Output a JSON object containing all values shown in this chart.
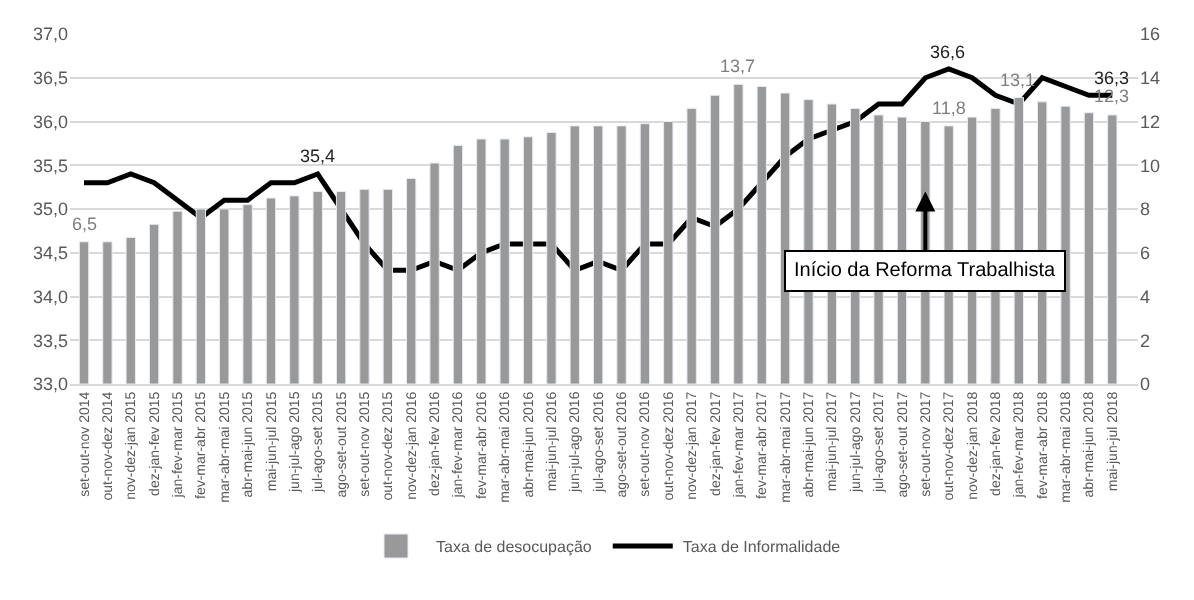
{
  "chart_data": {
    "type": "bar",
    "categories": [
      "set-out-nov 2014",
      "out-nov-dez 2014",
      "nov-dez-jan 2015",
      "dez-jan-fev 2015",
      "jan-fev-mar 2015",
      "fev-mar-abr 2015",
      "mar-abr-mai 2015",
      "abr-mai-jun 2015",
      "mai-jun-jul 2015",
      "jun-jul-ago 2015",
      "jul-ago-set 2015",
      "ago-set-out 2015",
      "set-out-nov 2015",
      "out-nov-dez 2015",
      "nov-dez-jan 2016",
      "dez-jan-fev 2016",
      "jan-fev-mar 2016",
      "fev-mar-abr 2016",
      "mar-abr-mai 2016",
      "abr-mai-jun 2016",
      "mai-jun-jul 2016",
      "jun-jul-ago 2016",
      "jul-ago-set 2016",
      "ago-set-out 2016",
      "set-out-nov 2016",
      "out-nov-dez 2016",
      "nov-dez-jan 2017",
      "dez-jan-fev 2017",
      "jan-fev-mar 2017",
      "fev-mar-abr 2017",
      "mar-abr-mai 2017",
      "abr-mai-jun 2017",
      "mai-jun-jul 2017",
      "jun-jul-ago 2017",
      "jul-ago-set 2017",
      "ago-set-out 2017",
      "set-out-nov 2017",
      "out-nov-dez 2017",
      "nov-dez-jan 2018",
      "dez-jan-fev 2018",
      "jan-fev-mar 2018",
      "fev-mar-abr 2018",
      "mar-abr-mai 2018",
      "abr-mai-jun 2018",
      "mai-jun-jul 2018"
    ],
    "series": [
      {
        "name": "Taxa de desocupação",
        "axis": "y2",
        "color": "#999999",
        "values": [
          6.5,
          6.5,
          6.7,
          7.3,
          7.9,
          8.0,
          8.0,
          8.2,
          8.5,
          8.6,
          8.8,
          8.8,
          8.9,
          8.9,
          9.4,
          10.1,
          10.9,
          11.2,
          11.2,
          11.3,
          11.5,
          11.8,
          11.8,
          11.8,
          11.9,
          12.0,
          12.6,
          13.2,
          13.7,
          13.6,
          13.3,
          13.0,
          12.8,
          12.6,
          12.3,
          12.2,
          12.0,
          11.8,
          12.2,
          12.6,
          13.1,
          12.9,
          12.7,
          12.4,
          12.3
        ],
        "value_labels": [
          "6,5",
          null,
          null,
          null,
          null,
          null,
          null,
          null,
          null,
          null,
          null,
          null,
          null,
          null,
          null,
          null,
          null,
          null,
          null,
          null,
          null,
          null,
          null,
          null,
          null,
          null,
          null,
          null,
          "13,7",
          null,
          null,
          null,
          null,
          null,
          null,
          null,
          null,
          "11,8",
          null,
          null,
          "13,1",
          null,
          null,
          null,
          "12,3"
        ]
      },
      {
        "name": "Taxa de Informalidade",
        "type": "line",
        "axis": "y",
        "color": "#000000",
        "values": [
          35.3,
          35.3,
          35.4,
          35.3,
          35.1,
          34.9,
          35.1,
          35.1,
          35.3,
          35.3,
          35.4,
          35.0,
          34.6,
          34.3,
          34.3,
          34.4,
          34.3,
          34.5,
          34.6,
          34.6,
          34.6,
          34.3,
          34.4,
          34.3,
          34.6,
          34.6,
          34.9,
          34.8,
          35.0,
          35.3,
          35.6,
          35.8,
          35.9,
          36.0,
          36.2,
          36.2,
          36.5,
          36.6,
          36.5,
          36.3,
          36.2,
          36.5,
          36.4,
          36.3,
          36.3
        ],
        "value_labels": [
          null,
          null,
          null,
          null,
          null,
          null,
          null,
          null,
          null,
          null,
          "35,4",
          null,
          null,
          null,
          null,
          null,
          null,
          null,
          null,
          null,
          null,
          null,
          null,
          null,
          null,
          null,
          null,
          null,
          null,
          null,
          null,
          null,
          null,
          null,
          null,
          null,
          null,
          "36,6",
          null,
          null,
          null,
          null,
          null,
          null,
          "36,3"
        ]
      }
    ],
    "ylim": [
      33,
      37
    ],
    "yticks": [
      {
        "value": 33,
        "label": "33,0"
      },
      {
        "value": 33.5,
        "label": "33,5"
      },
      {
        "value": 34,
        "label": "34,0"
      },
      {
        "value": 34.5,
        "label": "34,5"
      },
      {
        "value": 35,
        "label": "35,0"
      },
      {
        "value": 35.5,
        "label": "35,5"
      },
      {
        "value": 36,
        "label": "36,0"
      },
      {
        "value": 36.5,
        "label": "36,5"
      },
      {
        "value": 37,
        "label": "37,0"
      }
    ],
    "y2lim": [
      0,
      16
    ],
    "y2ticks": [
      0,
      2,
      4,
      6,
      8,
      10,
      12,
      14,
      16
    ],
    "grid": "y",
    "legend": "bottom",
    "annotations": [
      {
        "text": "Início da Reforma Trabalhista",
        "x": "set-out-nov 2017",
        "y": 35.2
      }
    ]
  }
}
